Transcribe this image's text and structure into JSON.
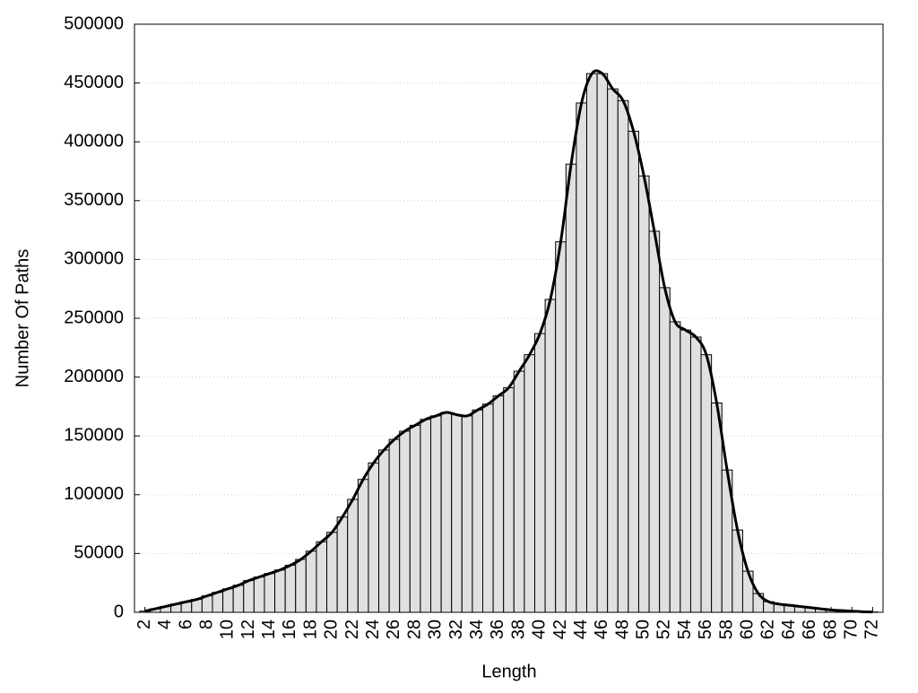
{
  "chart_data": {
    "type": "histogram",
    "x_label": "Length",
    "y_label": "Number Of Paths",
    "bins": [
      1.5,
      2.5,
      3.5,
      4.5,
      5.5,
      6.5,
      7.5,
      8.5,
      9.5,
      10.5,
      11.5,
      12.5,
      13.5,
      14.5,
      15.5,
      16.5,
      17.5,
      18.5,
      19.5,
      20.5,
      21.5,
      22.5,
      23.5,
      24.5,
      25.5,
      26.5,
      27.5,
      28.5,
      29.5,
      30.5,
      31.5,
      32.5,
      33.5,
      34.5,
      35.5,
      36.5,
      37.5,
      38.5,
      39.5,
      40.5,
      41.5,
      42.5,
      43.5,
      44.5,
      45.5,
      46.5,
      47.5,
      48.5,
      49.5,
      50.5,
      51.5,
      52.5,
      53.5,
      54.5,
      55.5,
      56.5,
      57.5,
      58.5,
      59.5,
      60.5,
      61.5,
      62.5,
      63.5,
      64.5,
      65.5,
      66.5,
      67.5,
      68.5,
      69.5,
      70.5,
      71.5,
      72.5
    ],
    "values": [
      1000,
      3000,
      5000,
      7000,
      9000,
      11000,
      14000,
      17000,
      20000,
      23000,
      27000,
      30000,
      33000,
      36000,
      40000,
      45000,
      52000,
      60000,
      68000,
      81000,
      96000,
      113000,
      127000,
      138000,
      147000,
      154000,
      159000,
      164000,
      167000,
      170000,
      168000,
      167000,
      172000,
      177000,
      184000,
      191000,
      205000,
      219000,
      237000,
      266000,
      315000,
      381000,
      433000,
      458000,
      458000,
      445000,
      435000,
      409000,
      371000,
      324000,
      276000,
      247000,
      240000,
      234000,
      219000,
      178000,
      121000,
      70000,
      35000,
      16000,
      9000,
      7000,
      6000,
      5000,
      4000,
      3000,
      2000,
      1500,
      1000,
      500,
      300
    ],
    "color": "#e0e0e0",
    "edge_color": "#000000",
    "line_color": "#000000",
    "smooth_line": true,
    "xlim": [
      1,
      73
    ],
    "xticks": [
      2,
      4,
      6,
      8,
      10,
      12,
      14,
      16,
      18,
      20,
      22,
      24,
      26,
      28,
      30,
      32,
      34,
      36,
      38,
      40,
      42,
      44,
      46,
      48,
      50,
      52,
      54,
      56,
      58,
      60,
      62,
      64,
      66,
      68,
      70,
      72
    ],
    "ylim": [
      0,
      500000
    ],
    "yticks": [
      0,
      50000,
      100000,
      150000,
      200000,
      250000,
      300000,
      350000,
      400000,
      450000,
      500000
    ],
    "grid": true
  }
}
